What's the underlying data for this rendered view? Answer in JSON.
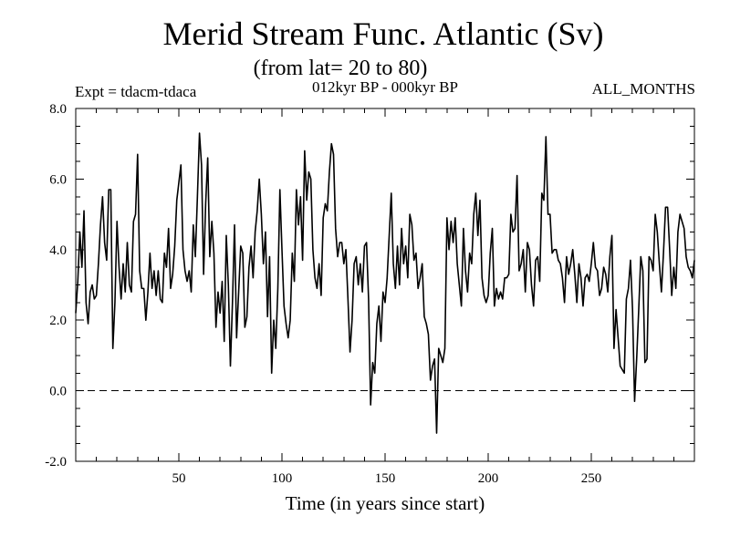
{
  "chart_data": {
    "type": "line",
    "title": "Merid Stream Func. Atlantic (Sv)",
    "subtitle": "(from lat= 20 to 80)",
    "header_left": "Expt = tdacm-tdaca",
    "header_center": "012kyr BP - 000kyr BP",
    "header_right": "ALL_MONTHS",
    "xlabel": "Time (in years since start)",
    "ylabel": "",
    "xlim": [
      0,
      300
    ],
    "ylim": [
      -2.0,
      8.0
    ],
    "x_ticks": [
      50,
      100,
      150,
      200,
      250
    ],
    "x_tick_labels": [
      "50",
      "100",
      "150",
      "200",
      "250"
    ],
    "y_ticks": [
      -2,
      0,
      2,
      4,
      6,
      8
    ],
    "y_tick_labels": [
      "-2.0",
      "0.0",
      "2.0",
      "4.0",
      "6.0",
      "8.0"
    ],
    "reference_line": {
      "y": 0,
      "style": "dashed"
    },
    "series": [
      {
        "name": "Merid Stream Func. Atlantic",
        "x_start": 0,
        "x_step": 1,
        "values": [
          2.2,
          3.1,
          4.5,
          3.5,
          5.1,
          2.5,
          1.9,
          2.8,
          3.0,
          2.6,
          2.7,
          3.6,
          4.7,
          5.5,
          4.2,
          3.7,
          5.7,
          5.7,
          1.2,
          2.5,
          4.8,
          3.5,
          2.6,
          3.6,
          2.8,
          4.2,
          3.0,
          2.8,
          4.8,
          5.0,
          6.7,
          3.4,
          2.9,
          2.9,
          2.0,
          2.8,
          3.9,
          2.9,
          3.4,
          2.7,
          3.4,
          2.6,
          2.5,
          3.9,
          3.5,
          4.6,
          2.9,
          3.3,
          4.1,
          5.4,
          5.9,
          6.4,
          4.0,
          3.4,
          3.1,
          3.4,
          2.8,
          4.7,
          3.8,
          5.5,
          7.3,
          6.4,
          3.3,
          5.3,
          6.6,
          3.8,
          4.8,
          3.9,
          1.8,
          2.8,
          2.2,
          3.1,
          1.4,
          4.4,
          3.0,
          0.7,
          2.5,
          4.7,
          1.5,
          2.8,
          4.1,
          3.9,
          1.8,
          2.1,
          3.5,
          4.1,
          3.2,
          4.5,
          5.1,
          6.0,
          5.0,
          3.6,
          4.5,
          2.1,
          3.8,
          0.5,
          2.0,
          1.2,
          2.9,
          5.7,
          4.0,
          2.4,
          1.9,
          1.5,
          2.0,
          3.9,
          3.1,
          5.7,
          4.7,
          5.5,
          3.7,
          6.8,
          5.4,
          6.2,
          6.0,
          4.0,
          3.2,
          2.9,
          3.6,
          2.7,
          4.9,
          5.3,
          5.1,
          6.2,
          7.0,
          6.7,
          4.6,
          3.8,
          4.2,
          4.2,
          3.6,
          4.0,
          2.6,
          1.1,
          2.0,
          3.6,
          3.8,
          3.0,
          3.6,
          2.8,
          4.1,
          4.2,
          2.6,
          -0.4,
          0.8,
          0.5,
          1.9,
          2.4,
          1.4,
          2.8,
          2.5,
          3.2,
          4.4,
          5.6,
          3.6,
          2.9,
          4.1,
          3.0,
          4.6,
          3.6,
          4.1,
          3.2,
          5.0,
          4.7,
          3.7,
          3.9,
          2.9,
          3.2,
          3.6,
          2.1,
          1.9,
          1.6,
          0.3,
          0.7,
          0.9,
          -1.2,
          1.2,
          1.0,
          0.8,
          1.2,
          4.9,
          4.0,
          4.8,
          4.2,
          4.9,
          3.6,
          3.0,
          2.4,
          4.6,
          3.4,
          2.8,
          3.9,
          3.6,
          5.0,
          5.6,
          4.4,
          5.4,
          3.2,
          2.7,
          2.5,
          2.7,
          3.9,
          4.6,
          2.4,
          2.9,
          2.6,
          2.8,
          2.6,
          3.2,
          3.2,
          3.3,
          5.0,
          4.5,
          4.6,
          6.1,
          3.4,
          3.6,
          4.0,
          2.8,
          4.2,
          4.0,
          3.0,
          2.4,
          3.7,
          3.8,
          3.1,
          5.6,
          5.4,
          7.2,
          5.0,
          5.0,
          3.9,
          4.0,
          4.0,
          3.7,
          3.6,
          3.2,
          2.5,
          3.8,
          3.3,
          3.6,
          4.0,
          3.3,
          2.5,
          3.6,
          3.2,
          2.4,
          3.2,
          3.3,
          3.1,
          3.6,
          4.2,
          3.5,
          3.4,
          2.7,
          2.9,
          3.5,
          3.3,
          2.8,
          3.8,
          4.4,
          1.2,
          2.3,
          1.5,
          0.7,
          0.6,
          0.5,
          2.6,
          2.9,
          3.7,
          2.3,
          -0.3,
          0.9,
          2.3,
          3.8,
          3.4,
          0.8,
          0.9,
          3.8,
          3.7,
          3.4,
          5.0,
          4.5,
          3.6,
          2.8,
          3.9,
          5.2,
          5.2,
          4.0,
          2.7,
          3.5,
          2.9,
          4.5,
          5.0,
          4.8,
          4.6,
          3.8,
          3.5,
          3.4,
          3.2,
          3.7
        ]
      }
    ]
  }
}
